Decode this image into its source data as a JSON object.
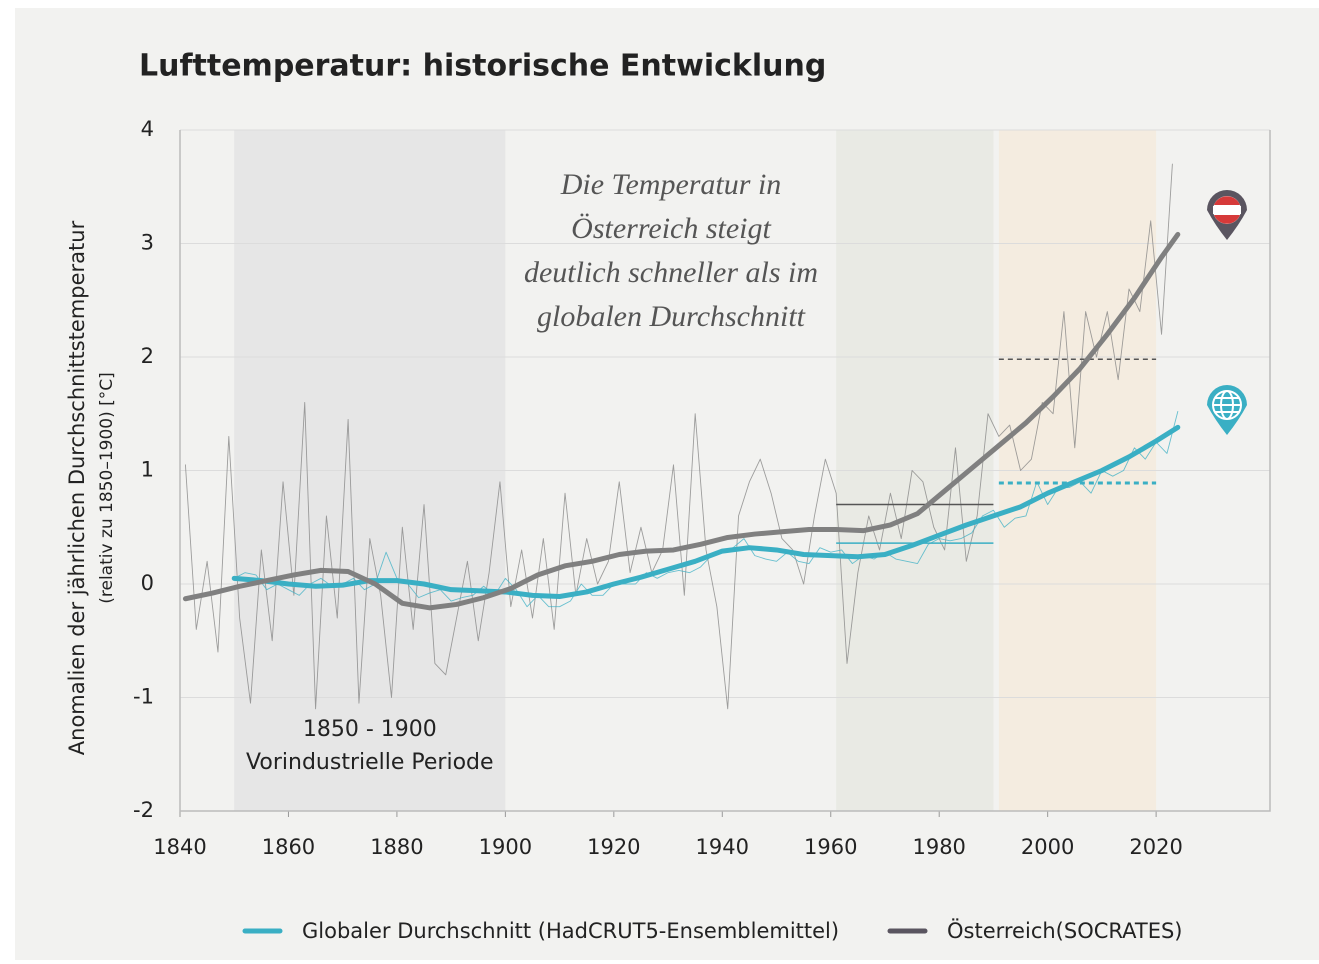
{
  "chart_data": {
    "type": "line",
    "title": "Lufttemperatur: historische Entwicklung",
    "y_label": [
      "Anomalien der jährlichen Durchschnittstemperatur",
      "(relativ zu 1850–1900) [°C]"
    ],
    "xlim": [
      1840,
      2041
    ],
    "ylim": [
      -2,
      4
    ],
    "xticks": [
      1840,
      1860,
      1880,
      1900,
      1920,
      1940,
      1960,
      1980,
      2000,
      2020
    ],
    "yticks": [
      -2,
      -1,
      0,
      1,
      2,
      3,
      4
    ],
    "grid": true,
    "periods": [
      {
        "start": 1850,
        "end": 1900,
        "color": "#e6e6e6",
        "label": [
          "1850 - 1900",
          "Vorindustrielle Periode"
        ]
      },
      {
        "start": 1961,
        "end": 1990,
        "color": "#e9eae4"
      },
      {
        "start": 1991,
        "end": 2020,
        "color": "#f4ece0"
      }
    ],
    "annotation": [
      "Die Temperatur in",
      "Österreich steigt",
      "deutlich schneller als im",
      "globalen Durchschnitt"
    ],
    "legend": "bottom",
    "series": [
      {
        "name": "Globaler Durchschnitt (HadCRUT5-Ensemblemittel)",
        "color": "#3aafc4",
        "x": [
          1850,
          1855,
          1860,
          1865,
          1870,
          1875,
          1880,
          1885,
          1890,
          1895,
          1900,
          1905,
          1910,
          1915,
          1920,
          1925,
          1930,
          1935,
          1940,
          1945,
          1950,
          1955,
          1960,
          1965,
          1970,
          1975,
          1980,
          1985,
          1990,
          1995,
          2000,
          2005,
          2010,
          2015,
          2020,
          2024
        ],
        "values": [
          0.05,
          0.03,
          0.0,
          -0.02,
          -0.01,
          0.03,
          0.03,
          0.0,
          -0.05,
          -0.06,
          -0.07,
          -0.1,
          -0.11,
          -0.07,
          0.0,
          0.06,
          0.13,
          0.2,
          0.29,
          0.32,
          0.3,
          0.26,
          0.25,
          0.24,
          0.26,
          0.34,
          0.43,
          0.52,
          0.6,
          0.68,
          0.8,
          0.9,
          1.0,
          1.12,
          1.26,
          1.38
        ],
        "annual_x": [
          1850,
          1852,
          1854,
          1856,
          1858,
          1860,
          1862,
          1864,
          1866,
          1868,
          1870,
          1872,
          1874,
          1876,
          1878,
          1880,
          1882,
          1884,
          1886,
          1888,
          1890,
          1892,
          1894,
          1896,
          1898,
          1900,
          1902,
          1904,
          1906,
          1908,
          1910,
          1912,
          1914,
          1916,
          1918,
          1920,
          1922,
          1924,
          1926,
          1928,
          1930,
          1932,
          1934,
          1936,
          1938,
          1940,
          1942,
          1944,
          1946,
          1948,
          1950,
          1952,
          1954,
          1956,
          1958,
          1960,
          1962,
          1964,
          1966,
          1968,
          1970,
          1972,
          1974,
          1976,
          1978,
          1980,
          1982,
          1984,
          1986,
          1988,
          1990,
          1992,
          1994,
          1996,
          1998,
          2000,
          2002,
          2004,
          2006,
          2008,
          2010,
          2012,
          2014,
          2016,
          2018,
          2020,
          2022,
          2024
        ],
        "annual_values": [
          0.05,
          0.1,
          0.08,
          -0.05,
          0.0,
          -0.05,
          -0.1,
          0.0,
          0.05,
          -0.02,
          0.0,
          0.05,
          -0.05,
          0.0,
          0.28,
          0.05,
          0.0,
          -0.12,
          -0.08,
          -0.05,
          -0.15,
          -0.12,
          -0.1,
          -0.02,
          -0.1,
          0.05,
          -0.05,
          -0.2,
          -0.1,
          -0.2,
          -0.2,
          -0.15,
          0.0,
          -0.1,
          -0.1,
          0.0,
          0.0,
          0.0,
          0.1,
          0.05,
          0.1,
          0.12,
          0.1,
          0.15,
          0.25,
          0.3,
          0.32,
          0.4,
          0.25,
          0.22,
          0.2,
          0.28,
          0.2,
          0.18,
          0.32,
          0.28,
          0.3,
          0.18,
          0.25,
          0.22,
          0.28,
          0.22,
          0.2,
          0.18,
          0.35,
          0.4,
          0.38,
          0.4,
          0.45,
          0.6,
          0.65,
          0.5,
          0.58,
          0.6,
          0.9,
          0.7,
          0.85,
          0.85,
          0.9,
          0.8,
          1.0,
          0.95,
          1.0,
          1.2,
          1.1,
          1.25,
          1.15,
          1.52
        ],
        "means": [
          {
            "start": 1961,
            "end": 1990,
            "value": 0.36,
            "dashed": false
          },
          {
            "start": 1991,
            "end": 2020,
            "value": 0.89,
            "dashed": true
          }
        ]
      },
      {
        "name": "Österreich(SOCRATES)",
        "color": "#808080",
        "x": [
          1841,
          1846,
          1851,
          1856,
          1861,
          1866,
          1871,
          1876,
          1881,
          1886,
          1891,
          1896,
          1901,
          1906,
          1911,
          1916,
          1921,
          1926,
          1931,
          1936,
          1941,
          1946,
          1951,
          1956,
          1961,
          1966,
          1971,
          1976,
          1981,
          1986,
          1991,
          1996,
          2001,
          2006,
          2011,
          2016,
          2021,
          2024
        ],
        "values": [
          -0.13,
          -0.08,
          -0.02,
          0.03,
          0.08,
          0.12,
          0.11,
          0.0,
          -0.17,
          -0.21,
          -0.18,
          -0.12,
          -0.04,
          0.08,
          0.16,
          0.2,
          0.26,
          0.29,
          0.3,
          0.35,
          0.41,
          0.44,
          0.46,
          0.48,
          0.48,
          0.47,
          0.52,
          0.62,
          0.82,
          1.02,
          1.22,
          1.42,
          1.65,
          1.9,
          2.2,
          2.52,
          2.88,
          3.08
        ],
        "annual_x": [
          1841,
          1843,
          1845,
          1847,
          1849,
          1851,
          1853,
          1855,
          1857,
          1859,
          1861,
          1863,
          1865,
          1867,
          1869,
          1871,
          1873,
          1875,
          1877,
          1879,
          1881,
          1883,
          1885,
          1887,
          1889,
          1891,
          1893,
          1895,
          1897,
          1899,
          1901,
          1903,
          1905,
          1907,
          1909,
          1911,
          1913,
          1915,
          1917,
          1919,
          1921,
          1923,
          1925,
          1927,
          1929,
          1931,
          1933,
          1935,
          1937,
          1939,
          1941,
          1943,
          1945,
          1947,
          1949,
          1951,
          1953,
          1955,
          1957,
          1959,
          1961,
          1963,
          1965,
          1967,
          1969,
          1971,
          1973,
          1975,
          1977,
          1979,
          1981,
          1983,
          1985,
          1987,
          1989,
          1991,
          1993,
          1995,
          1997,
          1999,
          2001,
          2003,
          2005,
          2007,
          2009,
          2011,
          2013,
          2015,
          2017,
          2019,
          2021,
          2023
        ],
        "annual_values": [
          1.05,
          -0.4,
          0.2,
          -0.6,
          1.3,
          -0.3,
          -1.05,
          0.3,
          -0.5,
          0.9,
          -0.1,
          1.6,
          -1.1,
          0.6,
          -0.3,
          1.45,
          -1.05,
          0.4,
          -0.1,
          -1.0,
          0.5,
          -0.4,
          0.7,
          -0.7,
          -0.8,
          -0.3,
          0.2,
          -0.5,
          0.1,
          0.9,
          -0.2,
          0.3,
          -0.3,
          0.4,
          -0.4,
          0.8,
          -0.1,
          0.4,
          0.0,
          0.2,
          0.9,
          0.1,
          0.5,
          0.1,
          0.3,
          1.05,
          -0.1,
          1.5,
          0.3,
          -0.2,
          -1.1,
          0.6,
          0.9,
          1.1,
          0.8,
          0.4,
          0.3,
          0.0,
          0.6,
          1.1,
          0.8,
          -0.7,
          0.1,
          0.6,
          0.3,
          0.8,
          0.4,
          1.0,
          0.9,
          0.5,
          0.3,
          1.2,
          0.2,
          0.6,
          1.5,
          1.3,
          1.4,
          1.0,
          1.1,
          1.6,
          1.5,
          2.4,
          1.2,
          2.4,
          2.0,
          2.4,
          1.8,
          2.6,
          2.4,
          3.2,
          2.2,
          3.7
        ],
        "means": [
          {
            "start": 1961,
            "end": 1990,
            "value": 0.7,
            "dashed": false
          },
          {
            "start": 1991,
            "end": 2020,
            "value": 1.98,
            "dashed": true
          }
        ]
      }
    ]
  }
}
